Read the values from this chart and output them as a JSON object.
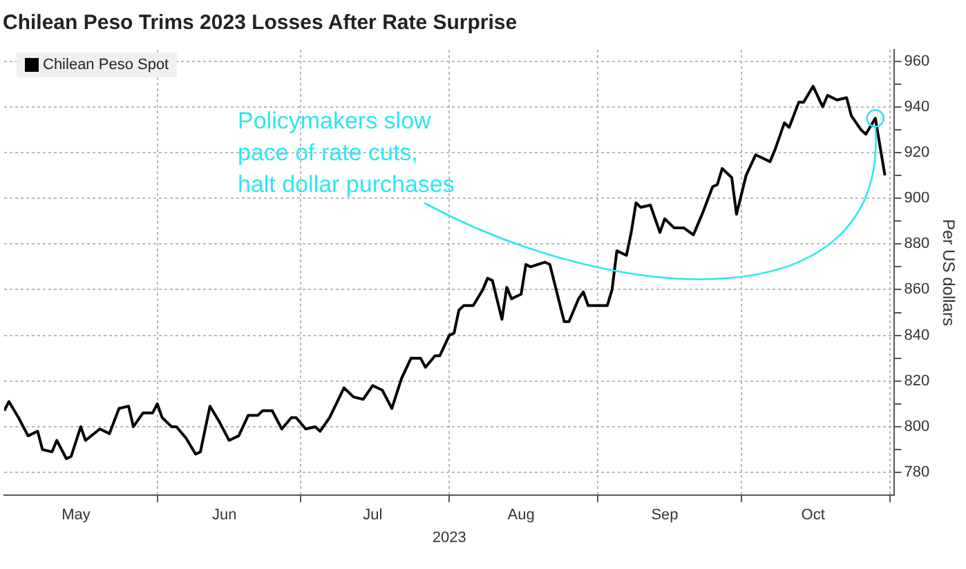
{
  "chart_data": {
    "type": "line",
    "title": "Chilean Peso Trims 2023 Losses After Rate Surprise",
    "xlabel": "2023",
    "ylabel": "Per US dollars",
    "x": [
      "2023-04-30",
      "2023-05-01",
      "2023-05-03",
      "2023-05-05",
      "2023-05-07",
      "2023-05-08",
      "2023-05-10",
      "2023-05-11",
      "2023-05-13",
      "2023-05-14",
      "2023-05-16",
      "2023-05-17",
      "2023-05-20",
      "2023-05-22",
      "2023-05-24",
      "2023-05-26",
      "2023-05-27",
      "2023-05-29",
      "2023-05-31",
      "2023-06-01",
      "2023-06-02",
      "2023-06-04",
      "2023-06-05",
      "2023-06-07",
      "2023-06-09",
      "2023-06-10",
      "2023-06-12",
      "2023-06-14",
      "2023-06-16",
      "2023-06-18",
      "2023-06-20",
      "2023-06-22",
      "2023-06-23",
      "2023-06-25",
      "2023-06-27",
      "2023-06-29",
      "2023-06-30",
      "2023-07-02",
      "2023-07-04",
      "2023-07-05",
      "2023-07-07",
      "2023-07-10",
      "2023-07-12",
      "2023-07-14",
      "2023-07-16",
      "2023-07-18",
      "2023-07-20",
      "2023-07-22",
      "2023-07-24",
      "2023-07-26",
      "2023-07-27",
      "2023-07-29",
      "2023-07-30",
      "2023-08-01",
      "2023-08-02",
      "2023-08-03",
      "2023-08-04",
      "2023-08-06",
      "2023-08-08",
      "2023-08-09",
      "2023-08-10",
      "2023-08-12",
      "2023-08-13",
      "2023-08-14",
      "2023-08-16",
      "2023-08-17",
      "2023-08-18",
      "2023-08-21",
      "2023-08-22",
      "2023-08-25",
      "2023-08-26",
      "2023-08-28",
      "2023-08-29",
      "2023-08-30",
      "2023-08-31",
      "2023-09-03",
      "2023-09-04",
      "2023-09-05",
      "2023-09-07",
      "2023-09-08",
      "2023-09-09",
      "2023-09-10",
      "2023-09-12",
      "2023-09-14",
      "2023-09-15",
      "2023-09-17",
      "2023-09-19",
      "2023-09-21",
      "2023-09-23",
      "2023-09-25",
      "2023-09-26",
      "2023-09-27",
      "2023-09-29",
      "2023-09-30",
      "2023-10-02",
      "2023-10-04",
      "2023-10-06",
      "2023-10-07",
      "2023-10-08",
      "2023-10-10",
      "2023-10-11",
      "2023-10-13",
      "2023-10-14",
      "2023-10-16",
      "2023-10-18",
      "2023-10-19",
      "2023-10-21",
      "2023-10-23",
      "2023-10-24",
      "2023-10-26",
      "2023-10-27",
      "2023-10-29",
      "2023-10-31"
    ],
    "series": [
      {
        "name": "Chilean Peso Spot",
        "color": "#000000",
        "values": [
          807,
          811,
          804,
          796,
          798,
          790,
          789,
          794,
          786,
          787,
          800,
          794,
          799,
          797,
          808,
          809,
          800,
          806,
          806,
          810,
          804,
          800,
          800,
          795,
          788,
          789,
          809,
          802,
          794,
          796,
          805,
          805,
          807,
          807,
          799,
          804,
          804,
          799,
          800,
          798,
          804,
          817,
          813,
          812,
          818,
          816,
          808,
          821,
          830,
          830,
          826,
          831,
          831,
          840,
          841,
          851,
          853,
          853,
          860,
          865,
          864,
          847,
          861,
          856,
          858,
          871,
          870,
          872,
          871,
          846,
          846,
          856,
          859,
          853,
          853,
          853,
          860,
          877,
          875,
          885,
          898,
          896,
          897,
          885,
          891,
          887,
          887,
          884,
          894,
          905,
          906,
          913,
          909,
          893,
          910,
          919,
          917,
          916,
          921,
          933,
          931,
          942,
          942,
          949,
          940,
          945,
          943,
          944,
          936,
          930,
          928,
          935,
          910
        ]
      }
    ],
    "xlim": [
      "2023-04-30",
      "2023-11-02"
    ],
    "xticks": [
      {
        "value": "2023-05-15",
        "label": "May"
      },
      {
        "value": "2023-06-01",
        "label": null
      },
      {
        "value": "2023-06-15",
        "label": "Jun"
      },
      {
        "value": "2023-07-01",
        "label": null
      },
      {
        "value": "2023-07-16",
        "label": "Jul"
      },
      {
        "value": "2023-08-01",
        "label": null
      },
      {
        "value": "2023-08-16",
        "label": "Aug"
      },
      {
        "value": "2023-09-01",
        "label": null
      },
      {
        "value": "2023-09-15",
        "label": "Sep"
      },
      {
        "value": "2023-10-01",
        "label": null
      },
      {
        "value": "2023-10-16",
        "label": "Oct"
      },
      {
        "value": "2023-11-01",
        "label": null
      }
    ],
    "ylim": [
      770,
      965
    ],
    "yticks": [
      780,
      {
        "value": 790,
        "label": null
      },
      800,
      {
        "value": 810,
        "label": null
      },
      820,
      {
        "value": 830,
        "label": null
      },
      840,
      {
        "value": 850,
        "label": null
      },
      860,
      {
        "value": 870,
        "label": null
      },
      880,
      {
        "value": 890,
        "label": null
      },
      900,
      {
        "value": 910,
        "label": null
      },
      920,
      {
        "value": 930,
        "label": null
      },
      940,
      {
        "value": 950,
        "label": null
      },
      960
    ],
    "grid": true,
    "legend": "top left",
    "annotations": [
      {
        "text": "Policymakers slow\npace of rate cuts,\nhalt dollar purchases",
        "x": "2023-10-29",
        "y": 935
      }
    ]
  }
}
